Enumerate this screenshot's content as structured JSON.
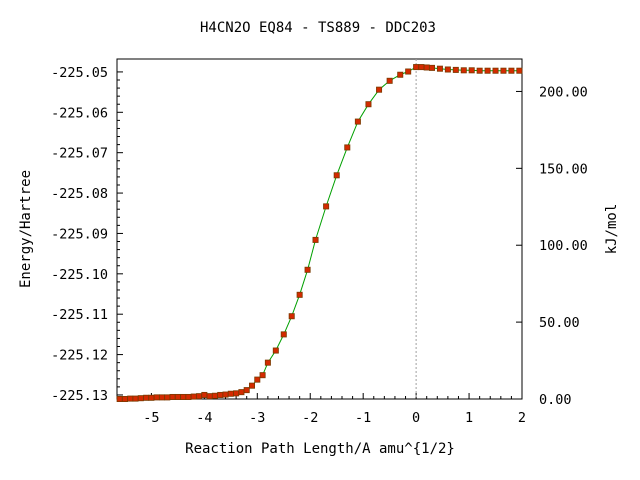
{
  "chart_data": {
    "type": "line",
    "title": "H4CN2O   EQ84 - TS889 - DDC203",
    "xlabel": "Reaction Path Length/A amu^{1/2}",
    "ylabel": "Energy/Hartree",
    "y2label": "kJ/mol",
    "xlim": [
      -5.65,
      2.0
    ],
    "ylim": [
      -225.131,
      -225.0468
    ],
    "y2lim": [
      0,
      221.1
    ],
    "x_ticks": [
      "-5",
      "-4",
      "-3",
      "-2",
      "-1",
      "0",
      "1",
      "2"
    ],
    "y_ticks": [
      "-225.05",
      "-225.06",
      "-225.07",
      "-225.08",
      "-225.09",
      "-225.10",
      "-225.11",
      "-225.12",
      "-225.13"
    ],
    "y2_ticks": [
      "0.00",
      "50.00",
      "100.00",
      "150.00",
      "200.00"
    ],
    "grid": false,
    "ts_marker_x": 0.0,
    "curve_color": "#00a000",
    "marker_color": "#d42a00",
    "marker_edge_color": "#7a3a00",
    "series": [
      {
        "points": [
          [
            -5.6,
            -225.131
          ],
          [
            -5.5,
            -225.131
          ],
          [
            -5.4,
            -225.1309
          ],
          [
            -5.3,
            -225.1309
          ],
          [
            -5.2,
            -225.1308
          ],
          [
            -5.1,
            -225.1307
          ],
          [
            -5.0,
            -225.1307
          ],
          [
            -4.9,
            -225.1306
          ],
          [
            -4.8,
            -225.1306
          ],
          [
            -4.7,
            -225.1306
          ],
          [
            -4.6,
            -225.1305
          ],
          [
            -4.5,
            -225.1305
          ],
          [
            -4.4,
            -225.1305
          ],
          [
            -4.3,
            -225.1305
          ],
          [
            -4.2,
            -225.1304
          ],
          [
            -4.1,
            -225.1303
          ],
          [
            -4.0,
            -225.13
          ],
          [
            -3.9,
            -225.1303
          ],
          [
            -3.8,
            -225.1302
          ],
          [
            -3.7,
            -225.13
          ],
          [
            -3.6,
            -225.1299
          ],
          [
            -3.5,
            -225.1297
          ],
          [
            -3.4,
            -225.1296
          ],
          [
            -3.3,
            -225.1293
          ],
          [
            -3.2,
            -225.1288
          ],
          [
            -3.1,
            -225.1277
          ],
          [
            -3.0,
            -225.1262
          ],
          [
            -2.9,
            -225.1251
          ],
          [
            -2.8,
            -225.122
          ],
          [
            -2.65,
            -225.119
          ],
          [
            -2.5,
            -225.115
          ],
          [
            -2.35,
            -225.1105
          ],
          [
            -2.2,
            -225.1052
          ],
          [
            -2.05,
            -225.099
          ],
          [
            -1.9,
            -225.0916
          ],
          [
            -1.7,
            -225.0833
          ],
          [
            -1.5,
            -225.0756
          ],
          [
            -1.3,
            -225.0687
          ],
          [
            -1.1,
            -225.0623
          ],
          [
            -0.9,
            -225.058
          ],
          [
            -0.7,
            -225.0544
          ],
          [
            -0.5,
            -225.0522
          ],
          [
            -0.3,
            -225.0507
          ],
          [
            -0.15,
            -225.0499
          ],
          [
            0.0,
            -225.0488
          ],
          [
            0.1,
            -225.0488
          ],
          [
            0.2,
            -225.0489
          ],
          [
            0.3,
            -225.049
          ],
          [
            0.45,
            -225.0492
          ],
          [
            0.6,
            -225.0494
          ],
          [
            0.75,
            -225.0495
          ],
          [
            0.9,
            -225.0496
          ],
          [
            1.05,
            -225.0496
          ],
          [
            1.2,
            -225.0497
          ],
          [
            1.35,
            -225.0497
          ],
          [
            1.5,
            -225.0497
          ],
          [
            1.65,
            -225.0497
          ],
          [
            1.8,
            -225.0497
          ],
          [
            1.95,
            -225.0497
          ]
        ]
      }
    ]
  }
}
